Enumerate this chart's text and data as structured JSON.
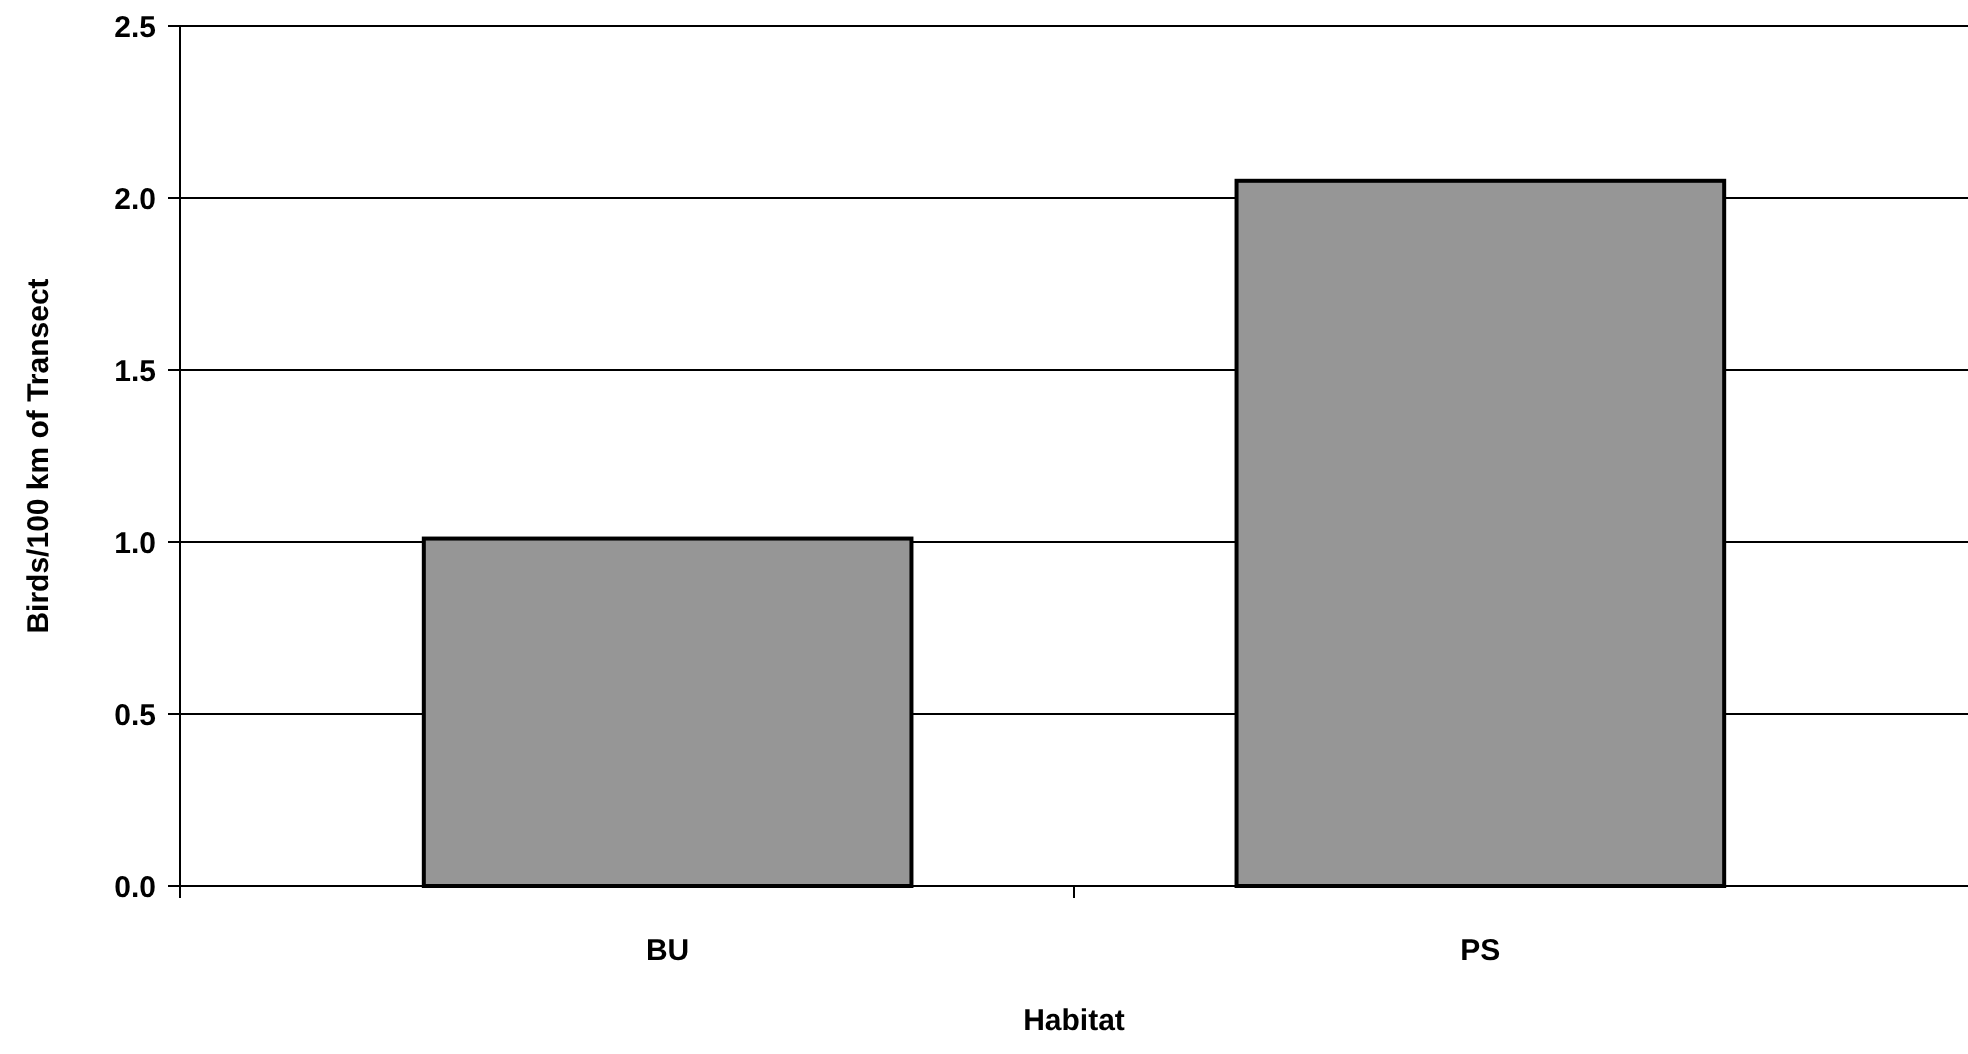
{
  "chart_data": {
    "type": "bar",
    "xlabel": "Habitat",
    "ylabel": "Birds/100 km of Transect",
    "categories": [
      "BU",
      "PS"
    ],
    "values": [
      1.01,
      2.05
    ],
    "color": "#969696",
    "ylim": [
      0,
      2.5
    ],
    "yticks": [
      {
        "value": 0,
        "label": "0.0"
      },
      {
        "value": 0.5,
        "label": "0.5"
      },
      {
        "value": 1,
        "label": "1.0"
      },
      {
        "value": 1.5,
        "label": "1.5"
      },
      {
        "value": 2,
        "label": "2.0"
      },
      {
        "value": 2.5,
        "label": "2.5"
      }
    ],
    "grid": "y"
  }
}
